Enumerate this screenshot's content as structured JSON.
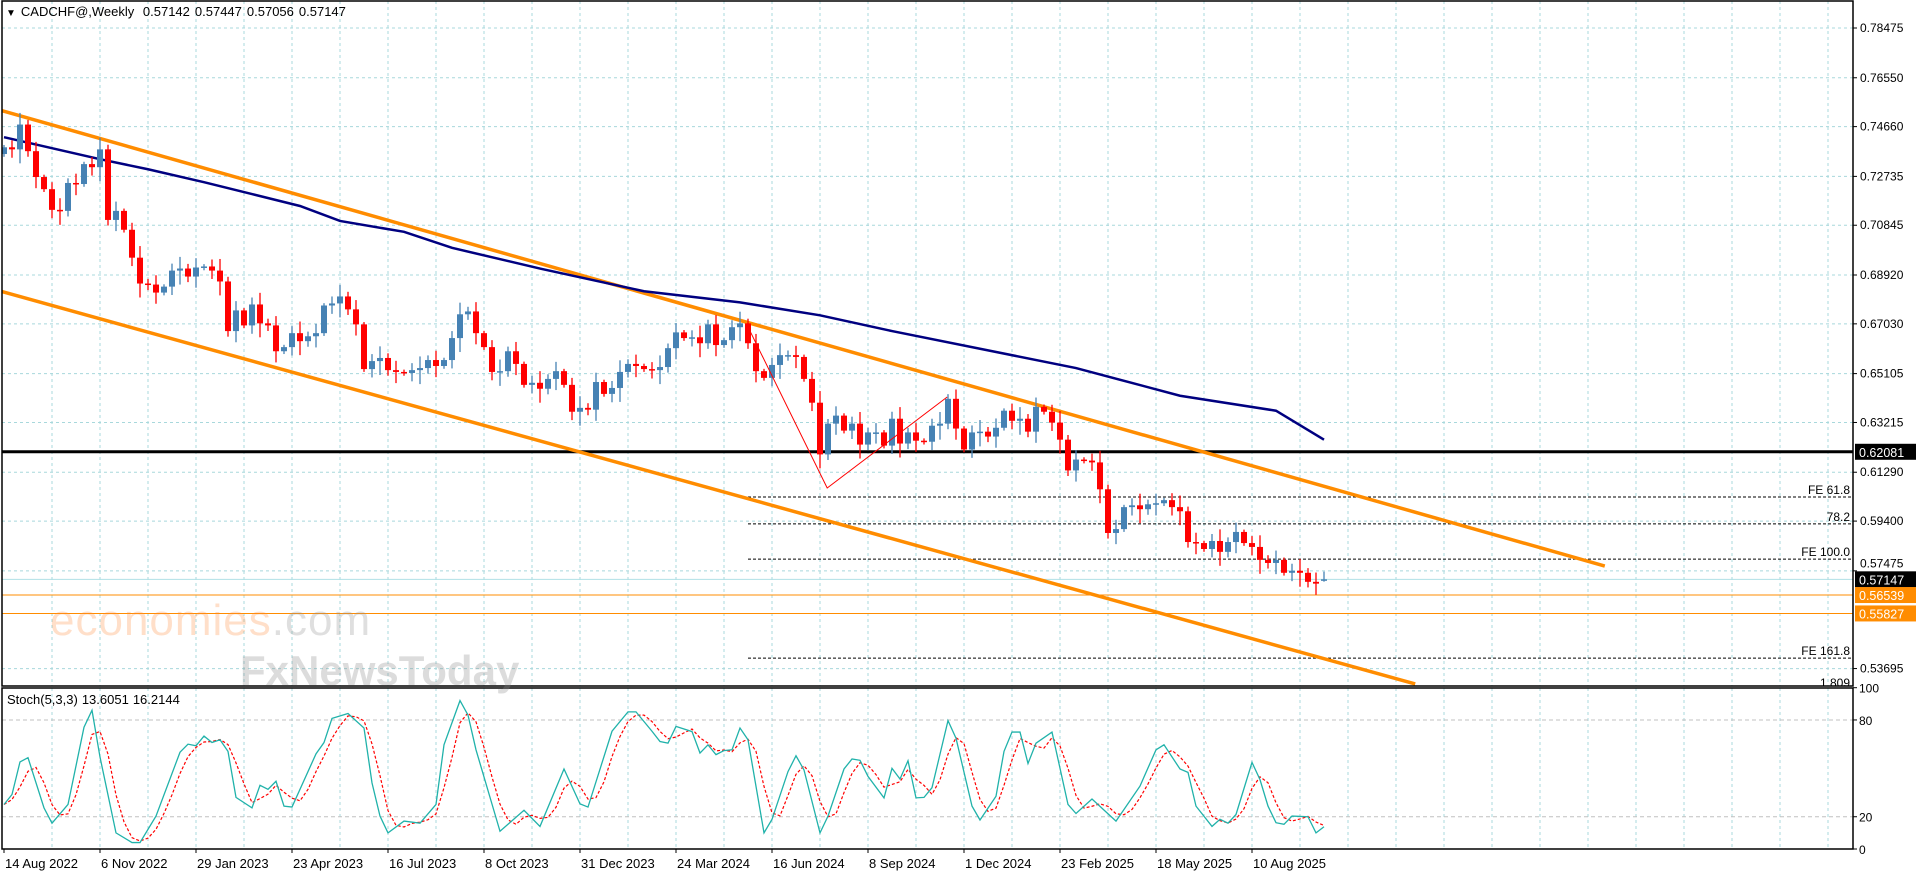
{
  "header": {
    "menu_icon": "triangle-down-icon",
    "symbol": "CADCHF@,Weekly",
    "open": "0.57142",
    "high": "0.57447",
    "low": "0.57056",
    "close": "0.57147"
  },
  "stoch_header": {
    "name": "Stoch(5,3,3)",
    "main": "13.6051",
    "signal": "16.2144"
  },
  "watermark": {
    "line1": "economies",
    "line1_suffix": ".com",
    "line2": "FxNewsToday"
  },
  "colors": {
    "bull": "#4682B4",
    "bear": "#FF0000",
    "ma": "#000080",
    "channel": "#FF8C00",
    "grid": "#A8D8DC",
    "stoch_main": "#20B2AA",
    "stoch_signal": "#FF0000",
    "support": "#000000",
    "bid": "#B0E0E6",
    "level_orange": "#FF8C00"
  },
  "chart_data": {
    "type": "candlestick",
    "title": "CADCHF@,Weekly",
    "price_axis_labels": [
      "0.78475",
      "0.76550",
      "0.74660",
      "0.72735",
      "0.70845",
      "0.68920",
      "0.67030",
      "0.65105",
      "0.63215",
      "0.61290",
      "0.59400",
      "0.57475",
      "0.53695"
    ],
    "date_labels": [
      "14 Aug 2022",
      "6 Nov 2022",
      "29 Jan 2023",
      "23 Apr 2023",
      "16 Jul 2023",
      "8 Oct 2023",
      "31 Dec 2023",
      "24 Mar 2024",
      "16 Jun 2024",
      "8 Sep 2024",
      "1 Dec 2024",
      "23 Feb 2025",
      "18 May 2025",
      "10 Aug 2025"
    ],
    "bars_between_date_labels": 12,
    "first_open": 0.736,
    "last_bar": {
      "open": 0.57142,
      "high": 0.57447,
      "low": 0.57056,
      "close": 0.57147
    },
    "closes": [
      0.7386,
      0.7378,
      0.7474,
      0.7371,
      0.7271,
      0.7224,
      0.7144,
      0.714,
      0.7248,
      0.7244,
      0.7321,
      0.7309,
      0.7378,
      0.7105,
      0.714,
      0.7067,
      0.6959,
      0.6859,
      0.6855,
      0.6824,
      0.6847,
      0.6909,
      0.6917,
      0.6886,
      0.6921,
      0.6925,
      0.6909,
      0.6867,
      0.6675,
      0.6755,
      0.6697,
      0.6778,
      0.6705,
      0.6697,
      0.6597,
      0.6613,
      0.6667,
      0.6636,
      0.6655,
      0.6667,
      0.6774,
      0.6782,
      0.6809,
      0.6759,
      0.6701,
      0.6528,
      0.6559,
      0.6571,
      0.6524,
      0.6517,
      0.6513,
      0.6524,
      0.6532,
      0.6563,
      0.654,
      0.6563,
      0.6648,
      0.674,
      0.6751,
      0.6667,
      0.6613,
      0.6517,
      0.652,
      0.6597,
      0.6548,
      0.6467,
      0.6475,
      0.6452,
      0.649,
      0.652,
      0.6467,
      0.6363,
      0.6378,
      0.6371,
      0.6478,
      0.6432,
      0.6455,
      0.6517,
      0.6548,
      0.654,
      0.6528,
      0.6524,
      0.6536,
      0.6609,
      0.667,
      0.6648,
      0.6651,
      0.6628,
      0.6701,
      0.6621,
      0.664,
      0.669,
      0.6705,
      0.6628,
      0.652,
      0.6494,
      0.6544,
      0.6582,
      0.6582,
      0.6575,
      0.649,
      0.6398,
      0.6198,
      0.6317,
      0.6348,
      0.629,
      0.6317,
      0.6236,
      0.6283,
      0.6283,
      0.6232,
      0.6336,
      0.624,
      0.6283,
      0.6251,
      0.6247,
      0.6309,
      0.6317,
      0.6413,
      0.6298,
      0.6217,
      0.6283,
      0.6286,
      0.6267,
      0.6301,
      0.6367,
      0.6328,
      0.6336,
      0.6286,
      0.6382,
      0.6363,
      0.6321,
      0.6255,
      0.6136,
      0.6178,
      0.6174,
      0.6167,
      0.6063,
      0.5894,
      0.5909,
      0.5994,
      0.6001,
      0.5986,
      0.6005,
      0.6009,
      0.6021,
      0.5994,
      0.5978,
      0.5859,
      0.5855,
      0.5832,
      0.5863,
      0.5821,
      0.5859,
      0.5898,
      0.5855,
      0.584,
      0.579,
      0.5778,
      0.579,
      0.574,
      0.5748,
      0.574,
      0.5705,
      0.5698,
      0.57147
    ],
    "moving_average": [
      [
        0,
        0.7425
      ],
      [
        12,
        0.734
      ],
      [
        18,
        0.7301
      ],
      [
        25,
        0.7251
      ],
      [
        31,
        0.7205
      ],
      [
        37,
        0.7159
      ],
      [
        42,
        0.7101
      ],
      [
        50,
        0.7059
      ],
      [
        56,
        0.6997
      ],
      [
        67,
        0.6917
      ],
      [
        80,
        0.6829
      ],
      [
        92,
        0.6786
      ],
      [
        102,
        0.6736
      ],
      [
        111,
        0.6675
      ],
      [
        134,
        0.6532
      ],
      [
        147,
        0.6425
      ],
      [
        159,
        0.6367
      ],
      [
        165,
        0.6255
      ]
    ],
    "channel_upper": [
      [
        -0.5,
        0.753
      ],
      [
        200.1,
        0.5766
      ]
    ],
    "channel_lower": [
      [
        -0.5,
        0.683
      ],
      [
        176.4,
        0.531
      ]
    ],
    "zigzag": [
      [
        93,
        0.6691
      ],
      [
        102.9,
        0.6068
      ],
      [
        117.9,
        0.642
      ]
    ],
    "horizontal_levels": [
      {
        "price": 0.62081,
        "label": "0.62081",
        "style": "support"
      },
      {
        "price": 0.57147,
        "label": "0.57147",
        "style": "bid"
      },
      {
        "price": 0.56539,
        "label": "0.56539",
        "style": "orange"
      },
      {
        "price": 0.55827,
        "label": "0.55827",
        "style": "orange"
      }
    ],
    "fibo_start_bar": 93,
    "fibo_levels": [
      {
        "price": 0.6033,
        "label": "FE 61.8"
      },
      {
        "price": 0.5929,
        "label": "78.2"
      },
      {
        "price": 0.5793,
        "label": "FE 100.0"
      },
      {
        "price": 0.541,
        "label": "FE 161.8"
      },
      {
        "price": 0.5287,
        "label": "1.809"
      }
    ],
    "stochastic": {
      "axis_labels": [
        "100",
        "80",
        "20",
        "0"
      ],
      "levels": [
        80,
        20
      ],
      "main_points": [
        [
          0,
          27.6
        ],
        [
          1,
          33.8
        ],
        [
          2,
          54
        ],
        [
          3,
          56.6
        ],
        [
          5,
          25.5
        ],
        [
          6,
          16
        ],
        [
          8,
          27.6
        ],
        [
          10,
          75.5
        ],
        [
          11,
          86
        ],
        [
          12,
          57
        ],
        [
          14,
          10
        ],
        [
          16,
          4
        ],
        [
          17,
          4
        ],
        [
          19,
          20.4
        ],
        [
          22,
          60
        ],
        [
          23,
          65
        ],
        [
          24,
          64
        ],
        [
          25,
          70
        ],
        [
          26,
          66
        ],
        [
          27,
          67.7
        ],
        [
          28,
          60.5
        ],
        [
          29,
          32
        ],
        [
          31,
          25.5
        ],
        [
          32,
          39.5
        ],
        [
          33,
          37
        ],
        [
          34,
          42
        ],
        [
          35,
          26.6
        ],
        [
          36,
          26
        ],
        [
          39,
          59
        ],
        [
          40,
          66
        ],
        [
          41,
          81
        ],
        [
          43,
          84
        ],
        [
          45,
          75
        ],
        [
          46,
          41
        ],
        [
          47,
          20.4
        ],
        [
          48,
          10
        ],
        [
          50,
          17.3
        ],
        [
          52,
          16
        ],
        [
          54,
          27.6
        ],
        [
          55,
          64.6
        ],
        [
          57,
          92
        ],
        [
          58,
          83
        ],
        [
          59,
          61.5
        ],
        [
          62,
          11
        ],
        [
          65,
          24
        ],
        [
          67,
          14
        ],
        [
          70,
          49.6
        ],
        [
          72,
          28
        ],
        [
          73,
          26
        ],
        [
          76,
          73
        ],
        [
          78,
          85
        ],
        [
          79,
          85
        ],
        [
          81,
          73
        ],
        [
          82,
          66.6
        ],
        [
          83,
          65.6
        ],
        [
          84,
          76
        ],
        [
          86,
          72.8
        ],
        [
          87,
          59.5
        ],
        [
          88,
          64.6
        ],
        [
          89,
          58.5
        ],
        [
          90,
          61
        ],
        [
          91,
          61.5
        ],
        [
          92,
          75
        ],
        [
          93,
          67.7
        ],
        [
          95,
          10
        ],
        [
          96,
          18.4
        ],
        [
          98,
          48
        ],
        [
          99,
          57.8
        ],
        [
          100,
          49
        ],
        [
          102,
          10
        ],
        [
          103,
          20.4
        ],
        [
          105,
          49.6
        ],
        [
          106,
          55.8
        ],
        [
          107,
          55
        ],
        [
          108,
          45
        ],
        [
          110,
          31.7
        ],
        [
          111,
          50
        ],
        [
          112,
          43.4
        ],
        [
          113,
          54.7
        ],
        [
          114,
          31.7
        ],
        [
          115,
          32
        ],
        [
          116,
          38
        ],
        [
          118,
          79.6
        ],
        [
          119,
          68.7
        ],
        [
          121,
          26.6
        ],
        [
          122,
          18
        ],
        [
          124,
          32.7
        ],
        [
          125,
          60.5
        ],
        [
          126,
          72.5
        ],
        [
          127,
          72.5
        ],
        [
          128,
          53
        ],
        [
          129,
          65.6
        ],
        [
          131,
          72.5
        ],
        [
          133,
          27.6
        ],
        [
          134,
          22
        ],
        [
          136,
          31
        ],
        [
          139,
          17.3
        ],
        [
          142,
          39
        ],
        [
          144,
          61.5
        ],
        [
          145,
          64.6
        ],
        [
          147,
          49.6
        ],
        [
          148,
          47.5
        ],
        [
          149,
          26.6
        ],
        [
          151,
          14
        ],
        [
          152,
          18.4
        ],
        [
          153,
          16
        ],
        [
          154,
          21.4
        ],
        [
          156,
          53.7
        ],
        [
          157,
          43
        ],
        [
          158,
          26.6
        ],
        [
          159,
          16.3
        ],
        [
          160,
          15.3
        ],
        [
          161,
          20.4
        ],
        [
          163,
          20
        ],
        [
          164,
          10
        ],
        [
          165,
          13.8
        ]
      ]
    }
  }
}
